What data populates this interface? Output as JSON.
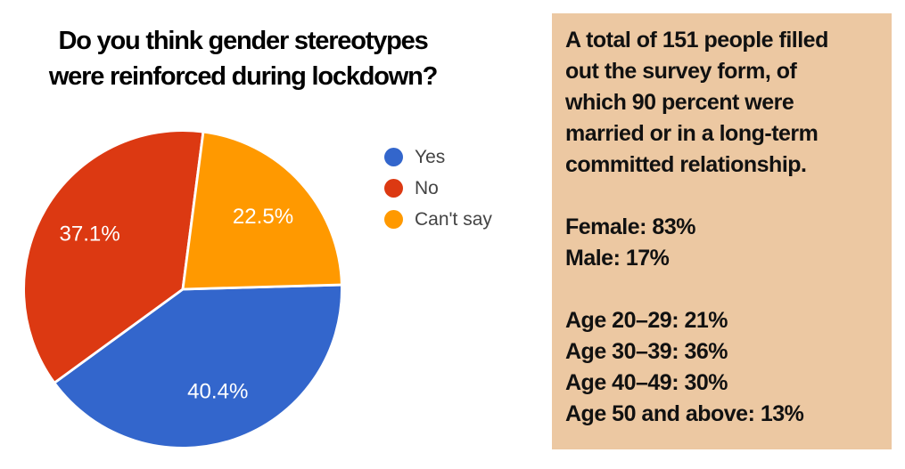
{
  "title": {
    "lines": [
      "Do you think gender stereotypes",
      "were reinforced during lockdown?"
    ]
  },
  "chart_data": {
    "type": "pie",
    "title": "Do you think gender stereotypes were reinforced during lockdown?",
    "series": [
      {
        "label": "Yes",
        "value": 40.4,
        "display": "40.4%",
        "color": "#3366CC"
      },
      {
        "label": "No",
        "value": 37.1,
        "display": "37.1%",
        "color": "#DC3912"
      },
      {
        "label": "Can't say",
        "value": 22.5,
        "display": "22.5%",
        "color": "#FF9900"
      }
    ],
    "start_angle_deg": 88.4,
    "direction": "clockwise",
    "legend_position": "right",
    "slice_label_color": "#ffffff",
    "slice_border_color": "#ffffff",
    "legend_text_color": "#444444"
  },
  "side_panel": {
    "background": "#ECC8A2",
    "lines": [
      "A total of 151 people filled",
      "out the survey form, of",
      "which 90 percent were",
      "married or in a long-term",
      "committed relationship.",
      "",
      "Female: 83%",
      "Male: 17%",
      "",
      "Age 20–29: 21%",
      "Age 30–39: 36%",
      "Age 40–49: 30%",
      "Age 50 and above: 13%"
    ]
  }
}
